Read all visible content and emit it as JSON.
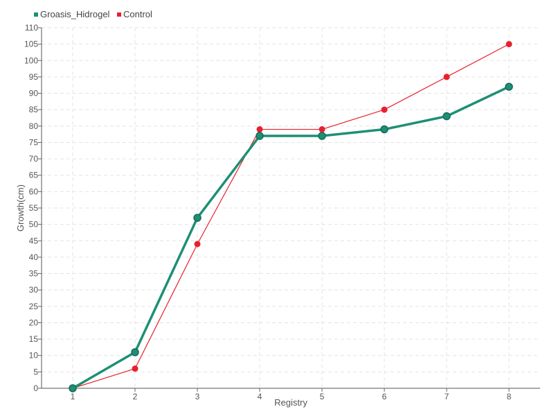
{
  "chart_data": {
    "type": "line",
    "xlabel": "Registry",
    "ylabel": "Growth(cm)",
    "ylim": [
      0,
      110
    ],
    "y_step": 5,
    "categories": [
      "1",
      "2",
      "3",
      "4",
      "5",
      "6",
      "7",
      "8"
    ],
    "grid": true,
    "legend_position": "top-left",
    "series": [
      {
        "name": "Groasis_Hidrogel",
        "color": "#1e8f74",
        "values": [
          0,
          11,
          52,
          77,
          77,
          79,
          83,
          92
        ]
      },
      {
        "name": "Control",
        "color": "#e8202e",
        "values": [
          0,
          6,
          44,
          79,
          79,
          85,
          95,
          105
        ]
      }
    ]
  }
}
